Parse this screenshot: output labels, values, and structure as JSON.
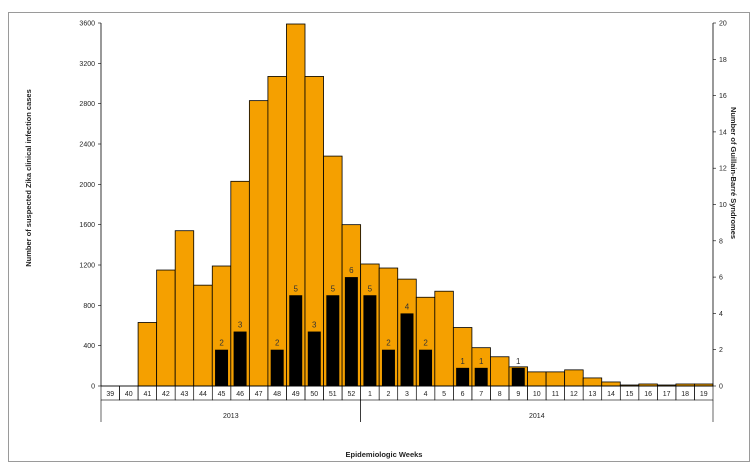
{
  "chart_data": {
    "type": "bar",
    "xlabel": "Epidemiologic Weeks",
    "ylabel_left": "Number of suspected Zika clinical infection cases",
    "ylabel_right": "Number of Guillain-Barré Syndromes",
    "ylim_left": [
      0,
      3600
    ],
    "yticks_left": [
      0,
      400,
      800,
      1200,
      1600,
      2000,
      2400,
      2800,
      3200,
      3600
    ],
    "ylim_right": [
      0,
      20
    ],
    "yticks_right": [
      0,
      2,
      4,
      6,
      8,
      10,
      12,
      14,
      16,
      18,
      20
    ],
    "categories": [
      "39",
      "40",
      "41",
      "42",
      "43",
      "44",
      "45",
      "46",
      "47",
      "48",
      "49",
      "50",
      "51",
      "52",
      "1",
      "2",
      "3",
      "4",
      "5",
      "6",
      "7",
      "8",
      "9",
      "10",
      "11",
      "12",
      "13",
      "14",
      "15",
      "16",
      "17",
      "18",
      "19"
    ],
    "year_groups": [
      {
        "label": "2013",
        "from": 0,
        "to": 13
      },
      {
        "label": "2014",
        "from": 14,
        "to": 32
      }
    ],
    "series": [
      {
        "axis": "left",
        "color": "#f5a000",
        "values": [
          0,
          0,
          630,
          1150,
          1540,
          1000,
          1190,
          2030,
          2830,
          3070,
          3590,
          3070,
          2280,
          1600,
          1210,
          1170,
          1060,
          880,
          940,
          580,
          380,
          290,
          190,
          140,
          140,
          160,
          80,
          40,
          10,
          20,
          10,
          20,
          20
        ]
      },
      {
        "axis": "right",
        "color": "#000000",
        "values": [
          0,
          0,
          0,
          0,
          0,
          0,
          2,
          3,
          0,
          2,
          5,
          3,
          5,
          6,
          5,
          2,
          4,
          2,
          0,
          1,
          1,
          0,
          1,
          0,
          0,
          0,
          0,
          0,
          0,
          0,
          0,
          0,
          0
        ],
        "labels": [
          "",
          "",
          "",
          "",
          "",
          "",
          "2",
          "3",
          "",
          "2",
          "5",
          "3",
          "5",
          "6",
          "5",
          "2",
          "4",
          "2",
          "",
          "1",
          "1",
          "",
          "1",
          "",
          "",
          "",
          "",
          "",
          "",
          "",
          "",
          "",
          ""
        ]
      }
    ],
    "grid": false
  }
}
